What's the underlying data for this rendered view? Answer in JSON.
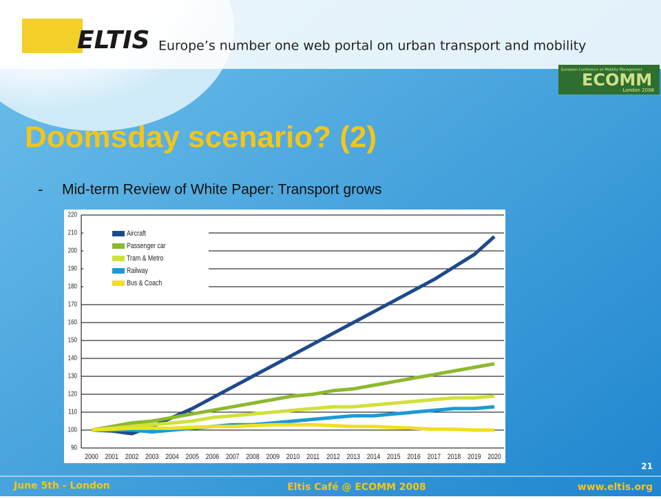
{
  "header": {
    "logo": "ELTIS",
    "tagline": "Europe’s number one web portal on urban transport and mobility",
    "badge": "ECOMM",
    "badge_top": "European Conference on Mobility Management",
    "badge_sub": "London 2008"
  },
  "title": "Doomsday scenario? (2)",
  "bullet": {
    "marker": "-",
    "text": "Mid-term Review of White Paper: Transport grows"
  },
  "footer": {
    "left": "June 5th - London",
    "center": "Eltis Café @ ECOMM 2008",
    "right": "www.eltis.org",
    "page": "21"
  },
  "chart_data": {
    "type": "line",
    "categories": [
      "2000",
      "2001",
      "2002",
      "2003",
      "2004",
      "2005",
      "2006",
      "2007",
      "2008",
      "2009",
      "2010",
      "2011",
      "2012",
      "2013",
      "2014",
      "2015",
      "2016",
      "2017",
      "2018",
      "2019",
      "2020"
    ],
    "series": [
      {
        "name": "Aircraft",
        "color": "#1e4a8c",
        "values": [
          100,
          99.5,
          98,
          102,
          107,
          112,
          118,
          124,
          130,
          136,
          142,
          148,
          154,
          160,
          166,
          172,
          178,
          184,
          191,
          198,
          208
        ]
      },
      {
        "name": "Passenger car",
        "color": "#8db92e",
        "values": [
          100,
          102,
          104,
          105,
          107,
          109,
          111,
          113,
          115,
          117,
          119,
          120,
          122,
          123,
          125,
          127,
          129,
          131,
          133,
          135,
          137
        ]
      },
      {
        "name": "Tram & Metro",
        "color": "#d2e03a",
        "values": [
          100,
          101,
          102,
          103,
          104,
          105,
          107,
          108,
          109,
          110,
          111,
          112,
          113,
          113,
          114,
          115,
          116,
          117,
          118,
          118,
          119
        ]
      },
      {
        "name": "Railway",
        "color": "#1a9ad6",
        "values": [
          100,
          100,
          100,
          99,
          100,
          101,
          102,
          103,
          103,
          104,
          105,
          106,
          107,
          108,
          108,
          109,
          110,
          111,
          112,
          112,
          113
        ]
      },
      {
        "name": "Bus & Coach",
        "color": "#f0e01e",
        "values": [
          100,
          100.5,
          101,
          101,
          101,
          101.5,
          102,
          102,
          102.5,
          103,
          103,
          103,
          102.5,
          102,
          102,
          101.5,
          101,
          100.5,
          100.5,
          100,
          100
        ]
      }
    ],
    "ylim": [
      90,
      220
    ],
    "yticks": [
      90,
      100,
      110,
      120,
      130,
      140,
      150,
      160,
      170,
      180,
      190,
      200,
      210,
      220
    ],
    "grid": true,
    "legend": "top-left"
  }
}
